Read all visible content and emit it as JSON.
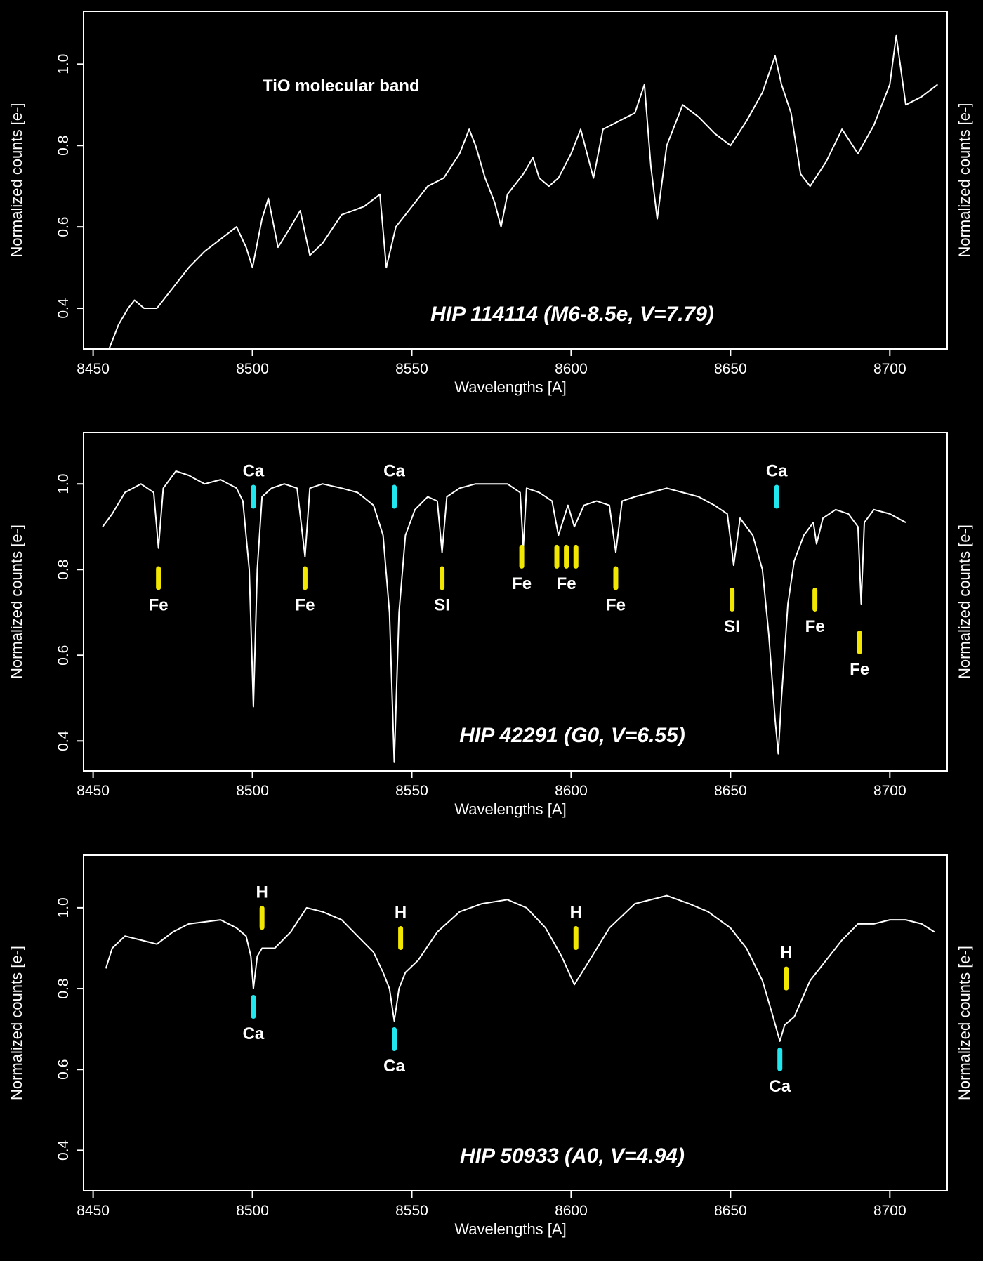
{
  "colors": {
    "background": "#000000",
    "axes": "#ffffff",
    "spectrum": "#ffffff",
    "marker_yellow": "#f2e700",
    "marker_cyan": "#22e6ee"
  },
  "chart_data": [
    {
      "type": "line",
      "star_label": "HIP 114114 (M6-8.5e, V=7.79)",
      "annotation": "TiO molecular band",
      "xlabel": "Wavelengths [A]",
      "ylabel": "Normalized counts [e-]",
      "ylabel_right": "Normalized counts [e-]",
      "xlim": [
        8447,
        8718
      ],
      "ylim": [
        0.3,
        1.13
      ],
      "xticks": [
        8450,
        8500,
        8550,
        8600,
        8650,
        8700
      ],
      "yticks": [
        0.4,
        0.6,
        0.8,
        1.0
      ],
      "xtick_labels": [
        "8450",
        "8500",
        "8550",
        "8600",
        "8650",
        "8700"
      ],
      "ytick_labels": [
        "0.4",
        "0.6",
        "0.8",
        "1.0"
      ],
      "series": [
        {
          "x": [
            8455,
            8458,
            8461,
            8463,
            8466,
            8470,
            8475,
            8480,
            8485,
            8490,
            8495,
            8498,
            8500,
            8503,
            8505,
            8508,
            8512,
            8515,
            8518,
            8522,
            8528,
            8535,
            8540,
            8542,
            8545,
            8550,
            8555,
            8560,
            8565,
            8568,
            8570,
            8573,
            8576,
            8578,
            8580,
            8585,
            8588,
            8590,
            8593,
            8596,
            8600,
            8603,
            8607,
            8610,
            8615,
            8620,
            8623,
            8625,
            8627,
            8630,
            8635,
            8640,
            8645,
            8650,
            8655,
            8660,
            8664,
            8666,
            8669,
            8672,
            8675,
            8680,
            8685,
            8690,
            8695,
            8700,
            8702,
            8705,
            8710,
            8715
          ],
          "y": [
            0.3,
            0.36,
            0.4,
            0.42,
            0.4,
            0.4,
            0.45,
            0.5,
            0.54,
            0.57,
            0.6,
            0.55,
            0.5,
            0.62,
            0.67,
            0.55,
            0.6,
            0.64,
            0.53,
            0.56,
            0.63,
            0.65,
            0.68,
            0.5,
            0.6,
            0.65,
            0.7,
            0.72,
            0.78,
            0.84,
            0.8,
            0.72,
            0.66,
            0.6,
            0.68,
            0.73,
            0.77,
            0.72,
            0.7,
            0.72,
            0.78,
            0.84,
            0.72,
            0.84,
            0.86,
            0.88,
            0.95,
            0.75,
            0.62,
            0.8,
            0.9,
            0.87,
            0.83,
            0.8,
            0.86,
            0.93,
            1.02,
            0.95,
            0.88,
            0.73,
            0.7,
            0.76,
            0.84,
            0.78,
            0.85,
            0.95,
            1.07,
            0.9,
            0.92,
            0.95
          ]
        }
      ],
      "line_markers": []
    },
    {
      "type": "line",
      "star_label": "HIP 42291 (G0, V=6.55)",
      "annotation": "",
      "xlabel": "Wavelengths [A]",
      "ylabel": "Normalized counts [e-]",
      "ylabel_right": "Normalized counts [e-]",
      "xlim": [
        8447,
        8718
      ],
      "ylim": [
        0.33,
        1.12
      ],
      "xticks": [
        8450,
        8500,
        8550,
        8600,
        8650,
        8700
      ],
      "yticks": [
        0.4,
        0.6,
        0.8,
        1.0
      ],
      "xtick_labels": [
        "8450",
        "8500",
        "8550",
        "8600",
        "8650",
        "8700"
      ],
      "ytick_labels": [
        "0.4",
        "0.6",
        "0.8",
        "1.0"
      ],
      "series": [
        {
          "x": [
            8453,
            8456,
            8460,
            8465,
            8469,
            8470.5,
            8472,
            8476,
            8480,
            8485,
            8490,
            8495,
            8497,
            8499,
            8500.3,
            8501.5,
            8503,
            8506,
            8510,
            8514,
            8516.5,
            8518,
            8522,
            8528,
            8533,
            8538,
            8541,
            8543,
            8544.5,
            8546,
            8548,
            8551,
            8555,
            8558,
            8559.5,
            8561,
            8565,
            8570,
            8575,
            8580,
            8584,
            8585,
            8586,
            8590,
            8594,
            8596,
            8599,
            8601,
            8604,
            8608,
            8612,
            8614,
            8616,
            8620,
            8625,
            8630,
            8635,
            8640,
            8645,
            8649,
            8651,
            8653,
            8657,
            8660,
            8662,
            8664,
            8665,
            8666,
            8668,
            8670,
            8673,
            8676,
            8677,
            8679,
            8683,
            8687,
            8690,
            8691,
            8692,
            8695,
            8700,
            8705
          ],
          "y": [
            0.9,
            0.93,
            0.98,
            1.0,
            0.98,
            0.85,
            0.99,
            1.03,
            1.02,
            1.0,
            1.01,
            0.99,
            0.96,
            0.8,
            0.48,
            0.8,
            0.97,
            0.99,
            1.0,
            0.99,
            0.83,
            0.99,
            1.0,
            0.99,
            0.98,
            0.95,
            0.88,
            0.7,
            0.35,
            0.7,
            0.88,
            0.94,
            0.97,
            0.96,
            0.84,
            0.97,
            0.99,
            1.0,
            1.0,
            1.0,
            0.98,
            0.85,
            0.99,
            0.98,
            0.96,
            0.88,
            0.95,
            0.9,
            0.95,
            0.96,
            0.95,
            0.84,
            0.96,
            0.97,
            0.98,
            0.99,
            0.98,
            0.97,
            0.95,
            0.93,
            0.81,
            0.92,
            0.88,
            0.8,
            0.65,
            0.45,
            0.37,
            0.5,
            0.72,
            0.82,
            0.88,
            0.91,
            0.86,
            0.92,
            0.94,
            0.93,
            0.9,
            0.72,
            0.91,
            0.94,
            0.93,
            0.91
          ]
        }
      ],
      "line_markers": [
        {
          "x": 8470.5,
          "y": 0.78,
          "label": "Fe",
          "color": "yellow",
          "label_side": "below"
        },
        {
          "x": 8500.3,
          "y": 0.97,
          "label": "Ca",
          "color": "cyan",
          "label_side": "above"
        },
        {
          "x": 8516.5,
          "y": 0.78,
          "label": "Fe",
          "color": "yellow",
          "label_side": "below"
        },
        {
          "x": 8544.5,
          "y": 0.97,
          "label": "Ca",
          "color": "cyan",
          "label_side": "above"
        },
        {
          "x": 8559.5,
          "y": 0.78,
          "label": "SI",
          "color": "yellow",
          "label_side": "below"
        },
        {
          "x": 8584.5,
          "y": 0.83,
          "label": "Fe",
          "color": "yellow",
          "label_side": "below"
        },
        {
          "x": 8595.5,
          "y": 0.83,
          "label": "",
          "color": "yellow",
          "label_side": "none"
        },
        {
          "x": 8598.5,
          "y": 0.83,
          "label": "Fe",
          "color": "yellow",
          "label_side": "below"
        },
        {
          "x": 8601.5,
          "y": 0.83,
          "label": "",
          "color": "yellow",
          "label_side": "none"
        },
        {
          "x": 8614,
          "y": 0.78,
          "label": "Fe",
          "color": "yellow",
          "label_side": "below"
        },
        {
          "x": 8650.5,
          "y": 0.73,
          "label": "SI",
          "color": "yellow",
          "label_side": "below"
        },
        {
          "x": 8664.5,
          "y": 0.97,
          "label": "Ca",
          "color": "cyan",
          "label_side": "above"
        },
        {
          "x": 8676.5,
          "y": 0.73,
          "label": "Fe",
          "color": "yellow",
          "label_side": "below"
        },
        {
          "x": 8690.5,
          "y": 0.63,
          "label": "Fe",
          "color": "yellow",
          "label_side": "below"
        }
      ]
    },
    {
      "type": "line",
      "star_label": "HIP 50933 (A0, V=4.94)",
      "annotation": "",
      "xlabel": "Wavelengths [A]",
      "ylabel": "Normalized counts [e-]",
      "ylabel_right": "Normalized counts [e-]",
      "xlim": [
        8447,
        8718
      ],
      "ylim": [
        0.3,
        1.13
      ],
      "xticks": [
        8450,
        8500,
        8550,
        8600,
        8650,
        8700
      ],
      "yticks": [
        0.4,
        0.6,
        0.8,
        1.0
      ],
      "xtick_labels": [
        "8450",
        "8500",
        "8550",
        "8600",
        "8650",
        "8700"
      ],
      "ytick_labels": [
        "0.4",
        "0.6",
        "0.8",
        "1.0"
      ],
      "series": [
        {
          "x": [
            8454,
            8456,
            8460,
            8465,
            8470,
            8475,
            8480,
            8490,
            8495,
            8498,
            8499.5,
            8500.3,
            8501.5,
            8503,
            8507,
            8512,
            8517,
            8522,
            8528,
            8533,
            8538,
            8541,
            8543,
            8544.5,
            8546,
            8548,
            8552,
            8558,
            8565,
            8572,
            8580,
            8586,
            8592,
            8597,
            8601,
            8605,
            8612,
            8620,
            8630,
            8637,
            8643,
            8650,
            8655,
            8660,
            8663,
            8665.5,
            8667,
            8670,
            8675,
            8680,
            8685,
            8690,
            8695,
            8700,
            8705,
            8710,
            8714
          ],
          "y": [
            0.85,
            0.9,
            0.93,
            0.92,
            0.91,
            0.94,
            0.96,
            0.97,
            0.95,
            0.93,
            0.88,
            0.8,
            0.88,
            0.9,
            0.9,
            0.94,
            1.0,
            0.99,
            0.97,
            0.93,
            0.89,
            0.84,
            0.8,
            0.72,
            0.8,
            0.84,
            0.87,
            0.94,
            0.99,
            1.01,
            1.02,
            1.0,
            0.95,
            0.88,
            0.81,
            0.86,
            0.95,
            1.01,
            1.03,
            1.01,
            0.99,
            0.95,
            0.9,
            0.82,
            0.74,
            0.67,
            0.71,
            0.73,
            0.82,
            0.87,
            0.92,
            0.96,
            0.96,
            0.97,
            0.97,
            0.96,
            0.94
          ]
        }
      ],
      "line_markers": [
        {
          "x": 8503,
          "y": 0.975,
          "label": "H",
          "color": "yellow",
          "label_side": "above"
        },
        {
          "x": 8546.5,
          "y": 0.925,
          "label": "H",
          "color": "yellow",
          "label_side": "above"
        },
        {
          "x": 8601.5,
          "y": 0.925,
          "label": "H",
          "color": "yellow",
          "label_side": "above"
        },
        {
          "x": 8667.5,
          "y": 0.825,
          "label": "H",
          "color": "yellow",
          "label_side": "above"
        },
        {
          "x": 8500.3,
          "y": 0.755,
          "label": "Ca",
          "color": "cyan",
          "label_side": "below"
        },
        {
          "x": 8544.5,
          "y": 0.675,
          "label": "Ca",
          "color": "cyan",
          "label_side": "below"
        },
        {
          "x": 8665.5,
          "y": 0.625,
          "label": "Ca",
          "color": "cyan",
          "label_side": "below"
        }
      ]
    }
  ]
}
